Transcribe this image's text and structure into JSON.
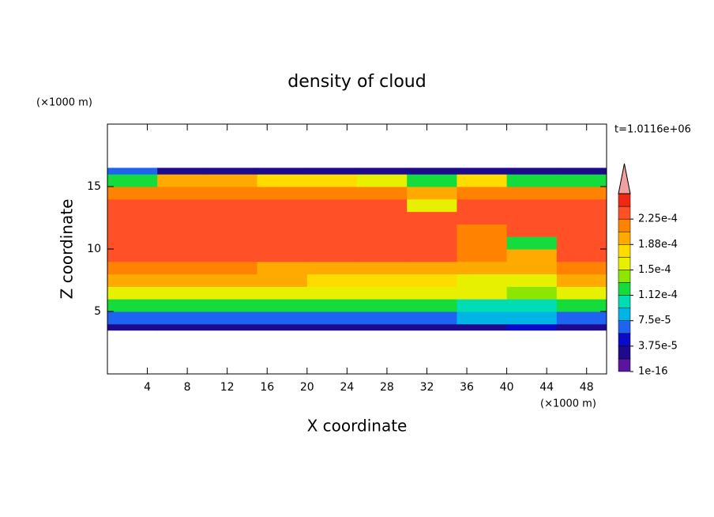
{
  "chart_data": {
    "type": "contour",
    "title": "density of cloud",
    "subtitle": "t=1.0116e+06",
    "x_label": "X coordinate",
    "y_label": "Z coordinate",
    "x_unit": "(×1000 m)",
    "y_unit": "(×1000 m)",
    "xlim": [
      0,
      50
    ],
    "ylim": [
      0,
      20
    ],
    "xticks": [
      4,
      8,
      12,
      16,
      20,
      24,
      28,
      32,
      36,
      40,
      44,
      48
    ],
    "yticks": [
      5,
      10,
      15
    ],
    "x_edges": [
      0,
      5,
      10,
      15,
      20,
      25,
      30,
      35,
      40,
      45,
      50
    ],
    "z_edges": [
      3.5,
      4,
      5,
      6,
      7,
      8,
      9,
      10,
      11,
      12,
      13,
      14,
      15,
      16,
      16.5
    ],
    "values": [
      [
        2e-05,
        2e-05,
        2e-05,
        2e-05,
        2e-05,
        2e-05,
        2e-05,
        3e-05,
        4e-05,
        2e-05
      ],
      [
        6e-05,
        6e-05,
        6e-05,
        6e-05,
        6e-05,
        7e-05,
        7e-05,
        8e-05,
        8e-05,
        6e-05
      ],
      [
        0.00013,
        0.00013,
        0.00013,
        0.00013,
        0.00013,
        0.00012,
        0.00012,
        0.00011,
        0.00011,
        0.00013
      ],
      [
        0.000165,
        0.000165,
        0.000165,
        0.00016,
        0.00016,
        0.000155,
        0.00015,
        0.00015,
        0.00014,
        0.00016
      ],
      [
        0.000195,
        0.000195,
        0.00019,
        0.00019,
        0.000185,
        0.00018,
        0.00017,
        0.000165,
        0.00016,
        0.00019
      ],
      [
        0.00021,
        0.00021,
        0.00021,
        0.000205,
        0.000205,
        0.0002,
        0.000195,
        0.00019,
        0.00019,
        0.00021
      ],
      [
        0.00023,
        0.00023,
        0.00023,
        0.00023,
        0.00023,
        0.00023,
        0.00023,
        0.00021,
        0.0002,
        0.00023
      ],
      [
        0.00023,
        0.00023,
        0.00023,
        0.00023,
        0.00023,
        0.00023,
        0.00023,
        0.00022,
        0.00012,
        0.00023
      ],
      [
        0.00023,
        0.00023,
        0.00023,
        0.00023,
        0.00023,
        0.00023,
        0.00023,
        0.00022,
        0.00023,
        0.00023
      ],
      [
        0.00023,
        0.00023,
        0.00023,
        0.00023,
        0.00023,
        0.00023,
        0.00023,
        0.00023,
        0.00023,
        0.00023
      ],
      [
        0.00023,
        0.00023,
        0.00023,
        0.00023,
        0.00023,
        0.00023,
        0.00015,
        0.00023,
        0.00023,
        0.00023
      ],
      [
        0.00021,
        0.00021,
        0.000215,
        0.00022,
        0.00022,
        0.000215,
        0.0002,
        0.00021,
        0.00022,
        0.00022
      ],
      [
        0.00012,
        0.00019,
        0.00019,
        0.00018,
        0.00017,
        0.00016,
        0.00013,
        0.00018,
        0.00012,
        0.00013
      ],
      [
        6e-05,
        2e-05,
        2e-05,
        2e-05,
        2e-05,
        2e-05,
        2e-05,
        2e-05,
        2e-05,
        2e-05
      ]
    ],
    "colorbar": {
      "levels": [
        1e-16,
        1.875e-05,
        3.75e-05,
        5.625e-05,
        7.5e-05,
        9.375e-05,
        0.0001125,
        0.00013125,
        0.00015,
        0.00016875,
        0.0001875,
        0.00020625,
        0.000225,
        0.00024375,
        0.0002625
      ],
      "colors": [
        "#5a14a0",
        "#1e0a8c",
        "#0a0ac8",
        "#1e64f0",
        "#00b4e6",
        "#00dcb4",
        "#14dc3c",
        "#8ce600",
        "#e6f000",
        "#ffdc00",
        "#ffaa00",
        "#ff8200",
        "#ff5028",
        "#f02814"
      ],
      "over_color": "#f0a0a0",
      "ticks": [
        1e-16,
        {
          "value": 3.75e-05,
          "label": "3.75e-5"
        },
        {
          "value": 7.5e-05,
          "label": "7.5e-5"
        },
        {
          "value": 0.0001125,
          "label": "1.12e-4"
        },
        {
          "value": 0.00015,
          "label": "1.5e-4"
        },
        {
          "value": 0.0001875,
          "label": "1.88e-4"
        },
        {
          "value": 0.000225,
          "label": "2.25e-4"
        }
      ]
    }
  }
}
